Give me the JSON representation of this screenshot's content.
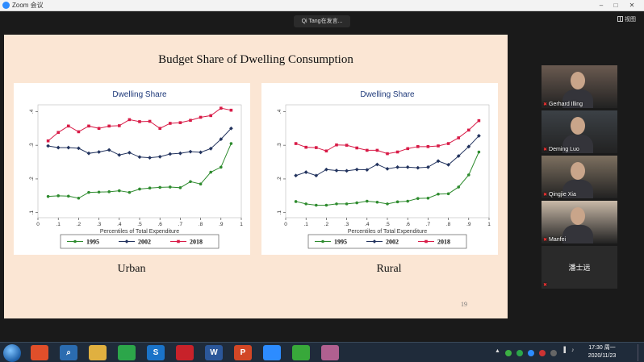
{
  "window": {
    "title": "Zoom 会议",
    "controls": [
      "–",
      "□",
      "✕"
    ]
  },
  "speaking": "Qi Tang在发言...",
  "gallery_view_label": "视图",
  "slide": {
    "title": "Budget Share of Dwelling Consumption",
    "page_number": "19",
    "panels": [
      {
        "label": "Urban"
      },
      {
        "label": "Rural"
      }
    ]
  },
  "chart_data": [
    {
      "type": "line",
      "title": "Dwelling Share",
      "panel": "Urban",
      "xlabel": "Percentiles of Total Expenditure",
      "ylabel": "",
      "x": [
        0.05,
        0.1,
        0.15,
        0.2,
        0.25,
        0.3,
        0.35,
        0.4,
        0.45,
        0.5,
        0.55,
        0.6,
        0.65,
        0.7,
        0.75,
        0.8,
        0.85,
        0.9,
        0.95
      ],
      "xticks": [
        "0",
        ".1",
        ".2",
        ".3",
        ".4",
        ".5",
        ".6",
        ".7",
        ".8",
        ".9",
        "1"
      ],
      "yticks": [
        ".1",
        ".2",
        ".3",
        ".4"
      ],
      "xlim": [
        0,
        1
      ],
      "ylim": [
        0.085,
        0.42
      ],
      "series": [
        {
          "name": "1995",
          "color": "#2e8b2e",
          "marker": "circle",
          "values": [
            0.148,
            0.15,
            0.149,
            0.143,
            0.16,
            0.161,
            0.162,
            0.165,
            0.16,
            0.17,
            0.173,
            0.175,
            0.176,
            0.174,
            0.192,
            0.185,
            0.22,
            0.235,
            0.305
          ]
        },
        {
          "name": "2002",
          "color": "#22335e",
          "marker": "diamond",
          "values": [
            0.298,
            0.293,
            0.293,
            0.291,
            0.276,
            0.28,
            0.286,
            0.271,
            0.278,
            0.265,
            0.263,
            0.266,
            0.274,
            0.276,
            0.281,
            0.279,
            0.29,
            0.318,
            0.35
          ]
        },
        {
          "name": "2018",
          "color": "#d81b47",
          "marker": "square",
          "values": [
            0.313,
            0.338,
            0.357,
            0.34,
            0.357,
            0.35,
            0.357,
            0.358,
            0.376,
            0.37,
            0.371,
            0.35,
            0.365,
            0.367,
            0.374,
            0.383,
            0.388,
            0.41,
            0.404
          ]
        }
      ]
    },
    {
      "type": "line",
      "title": "Dwelling Share",
      "panel": "Rural",
      "xlabel": "Percentiles of Total Expenditure",
      "ylabel": "",
      "x": [
        0.05,
        0.1,
        0.15,
        0.2,
        0.25,
        0.3,
        0.35,
        0.4,
        0.45,
        0.5,
        0.55,
        0.6,
        0.65,
        0.7,
        0.75,
        0.8,
        0.85,
        0.9,
        0.95
      ],
      "xticks": [
        "0",
        ".1",
        ".2",
        ".3",
        ".4",
        ".5",
        ".6",
        ".7",
        ".8",
        ".9",
        "1"
      ],
      "yticks": [
        ".1",
        ".2",
        ".3",
        ".4"
      ],
      "xlim": [
        0,
        1
      ],
      "ylim": [
        0.085,
        0.42
      ],
      "series": [
        {
          "name": "1995",
          "color": "#2e8b2e",
          "marker": "circle",
          "values": [
            0.133,
            0.126,
            0.122,
            0.122,
            0.126,
            0.126,
            0.129,
            0.134,
            0.131,
            0.126,
            0.132,
            0.134,
            0.142,
            0.143,
            0.155,
            0.156,
            0.176,
            0.212,
            0.28
          ]
        },
        {
          "name": "2002",
          "color": "#22335e",
          "marker": "diamond",
          "values": [
            0.21,
            0.22,
            0.21,
            0.228,
            0.225,
            0.224,
            0.228,
            0.227,
            0.243,
            0.23,
            0.235,
            0.235,
            0.233,
            0.235,
            0.253,
            0.242,
            0.268,
            0.296,
            0.328
          ]
        },
        {
          "name": "2018",
          "color": "#d81b47",
          "marker": "square",
          "values": [
            0.305,
            0.294,
            0.293,
            0.283,
            0.301,
            0.3,
            0.292,
            0.285,
            0.285,
            0.275,
            0.28,
            0.29,
            0.296,
            0.296,
            0.298,
            0.305,
            0.322,
            0.345,
            0.373
          ]
        }
      ]
    }
  ],
  "participants": [
    {
      "name": "Gerhard Illing",
      "muted": true,
      "video": true,
      "bg": "#6a5a50"
    },
    {
      "name": "Deming Luo",
      "muted": true,
      "video": true,
      "bg": "#3c4146"
    },
    {
      "name": "Qingjie Xia",
      "muted": true,
      "video": true,
      "bg": "#7d7060"
    },
    {
      "name": "Manfei",
      "muted": true,
      "video": true,
      "bg": "#c9b9a8"
    },
    {
      "name": "潘士远",
      "muted": true,
      "video": false,
      "bg": "#1e1e1e"
    }
  ],
  "taskbar": {
    "apps": [
      {
        "name": "windows-start",
        "label": ""
      },
      {
        "name": "pinwheel",
        "label": "",
        "color": "#e04f2a"
      },
      {
        "name": "search",
        "label": "⌕",
        "color": "#2b6cb0"
      },
      {
        "name": "file-explorer",
        "label": "",
        "color": "#e0b040"
      },
      {
        "name": "wechat",
        "label": "",
        "color": "#2ca64a"
      },
      {
        "name": "sogou",
        "label": "S",
        "color": "#1a73c8"
      },
      {
        "name": "pdf-reader",
        "label": "",
        "color": "#c8222a"
      },
      {
        "name": "word",
        "label": "W",
        "color": "#2b579a"
      },
      {
        "name": "powerpoint",
        "label": "P",
        "color": "#d24726"
      },
      {
        "name": "zoom",
        "label": "",
        "color": "#2d8cff"
      },
      {
        "name": "refresh-app",
        "label": "",
        "color": "#38a83a"
      },
      {
        "name": "paint-app",
        "label": "",
        "color": "#b06090"
      }
    ],
    "time": "17:30 周一",
    "date": "2020/11/23"
  }
}
